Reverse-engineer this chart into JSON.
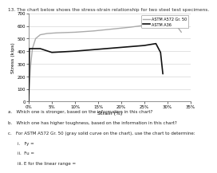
{
  "title": "13. The chart below shows the stress-strain relationship for two steel test specimens.",
  "xlabel": "Strain (%)",
  "ylabel": "Stress (kips)",
  "xlim": [
    0,
    35
  ],
  "ylim": [
    0,
    700
  ],
  "xticks": [
    0,
    5,
    10,
    15,
    20,
    25,
    30,
    35
  ],
  "yticks": [
    0,
    100,
    200,
    300,
    400,
    500,
    600,
    700
  ],
  "legend_labels": [
    "ASTM A572 Gr. 50",
    "ASTM A36"
  ],
  "legend_colors": [
    "#999999",
    "#000000"
  ],
  "background_color": "#ffffff",
  "grid_color": "#cccccc",
  "a572_strain": [
    0,
    0.2,
    0.4,
    0.8,
    1.5,
    2.5,
    4.0,
    6.0,
    10.0,
    14.0,
    18.0,
    22.0,
    26.0,
    28.5,
    30.0,
    31.0,
    32.0,
    33.0
  ],
  "a572_stress": [
    0,
    150,
    280,
    420,
    500,
    530,
    540,
    545,
    550,
    560,
    575,
    590,
    610,
    625,
    630,
    625,
    600,
    550
  ],
  "a36_strain": [
    0,
    0.12,
    0.125,
    0.14,
    0.16,
    2.5,
    5.0,
    10.0,
    15.0,
    20.0,
    25.0,
    27.5,
    28.5,
    29.0
  ],
  "a36_stress": [
    0,
    270,
    290,
    420,
    420,
    420,
    390,
    400,
    415,
    430,
    445,
    460,
    390,
    220
  ],
  "questions": [
    "a.   Which one is stronger, based on the information in this chart?",
    "b.   Which one has higher toughness, based on the information in this chart?",
    "c.   For ASTM A572 Gr. 50 (gray solid curve on the chart), use the chart to determine:",
    "i.   Fy =",
    "ii.  Fu =",
    "iii. E for the linear range ="
  ]
}
